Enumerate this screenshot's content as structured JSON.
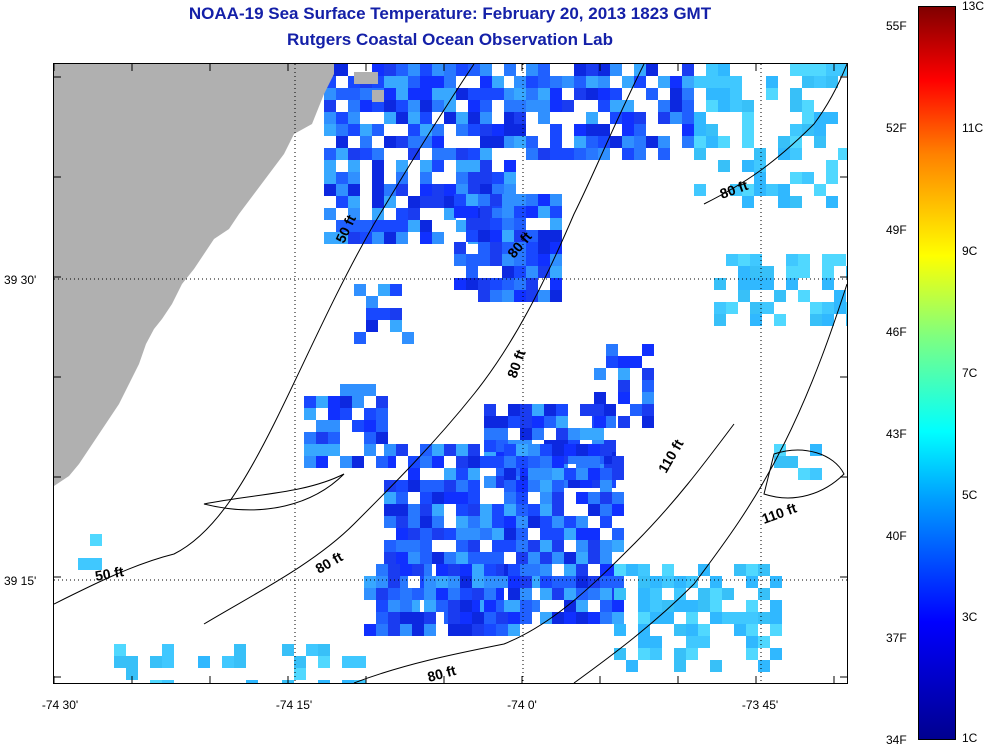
{
  "title": {
    "line1": "NOAA-19 Sea Surface Temperature:  February 20, 2013 1823 GMT",
    "line2": "Rutgers Coastal Ocean Observation Lab"
  },
  "map": {
    "land_color": "#b0b0b0",
    "x_ticks": [
      {
        "label": "-74 30'",
        "lon": -74.5
      },
      {
        "label": "-74 15'",
        "lon": -74.25
      },
      {
        "label": "-74 0'",
        "lon": -74.0
      },
      {
        "label": "-73 45'",
        "lon": -73.75
      }
    ],
    "y_ticks": [
      {
        "label": "39 30'",
        "lat": 39.5
      },
      {
        "label": "39 15'",
        "lat": 39.25
      }
    ],
    "contour_labels": [
      "50 ft",
      "80 ft",
      "80 ft",
      "80 ft",
      "110 ft",
      "110 ft",
      "50 ft",
      "80 ft",
      "80 ft"
    ]
  },
  "colorbar": {
    "fahrenheit": [
      "55F",
      "52F",
      "49F",
      "46F",
      "43F",
      "40F",
      "37F",
      "34F"
    ],
    "celsius": [
      "13C",
      "11C",
      "9C",
      "7C",
      "5C",
      "3C",
      "1C"
    ]
  }
}
